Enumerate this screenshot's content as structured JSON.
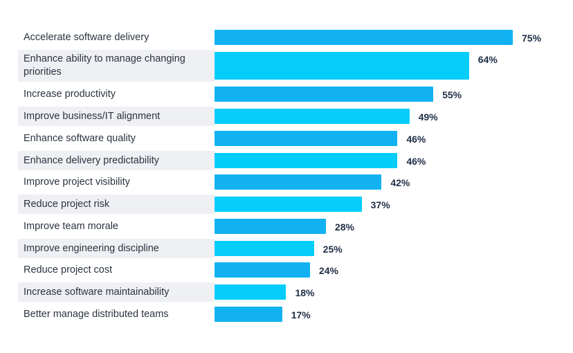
{
  "chart_data": {
    "type": "bar",
    "orientation": "horizontal",
    "title": "",
    "xlabel": "",
    "ylabel": "",
    "xlim": [
      0,
      75
    ],
    "grid": false,
    "value_suffix": "%",
    "colors": {
      "bar_primary": "#12b2f2",
      "bar_alternate": "#05cdfb",
      "row_shade": "#eef0f3",
      "label_text": "#2b3340",
      "value_text": "#1f2d45"
    },
    "categories": [
      "Accelerate software delivery",
      "Enhance ability to manage changing priorities",
      "Increase productivity",
      "Improve business/IT alignment",
      "Enhance software quality",
      "Enhance delivery predictability",
      "Improve project visibility",
      "Reduce project risk",
      "Improve team morale",
      "Improve engineering discipline",
      "Reduce project cost",
      "Increase software maintainability",
      "Better manage distributed teams"
    ],
    "values": [
      75,
      64,
      55,
      49,
      46,
      46,
      42,
      37,
      28,
      25,
      24,
      18,
      17
    ],
    "value_labels": [
      "75%",
      "64%",
      "55%",
      "49%",
      "46%",
      "46%",
      "42%",
      "37%",
      "28%",
      "25%",
      "24%",
      "18%",
      "17%"
    ]
  }
}
